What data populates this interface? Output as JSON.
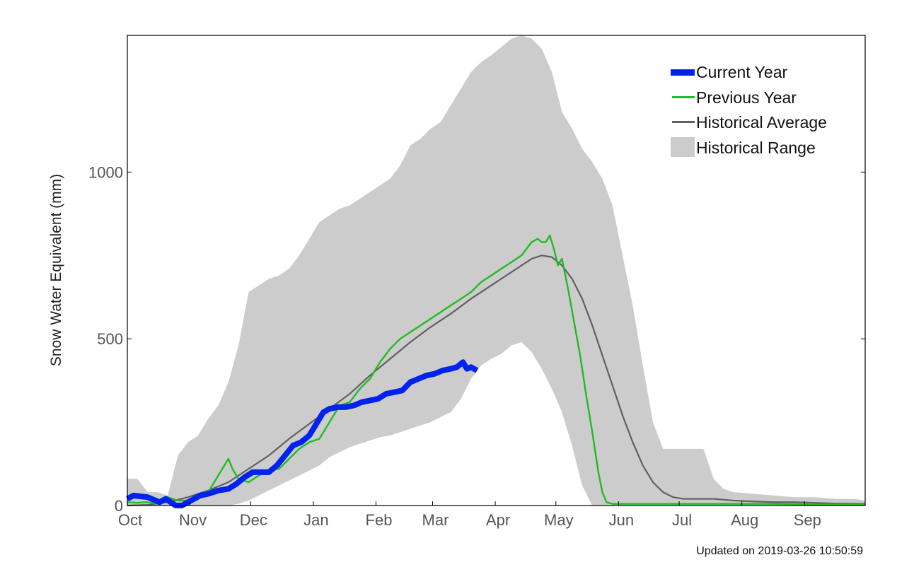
{
  "footer": {
    "updated_label": "Updated on  2019-03-26 10:50:59"
  },
  "chart_data": {
    "type": "line",
    "title": "",
    "xlabel": "",
    "ylabel": "Snow Water Equivalent (mm)",
    "xlim": [
      0,
      365
    ],
    "ylim": [
      0,
      1410
    ],
    "yticks": [
      0,
      500,
      1000
    ],
    "xticks": [
      {
        "day": 0,
        "label": "Oct"
      },
      {
        "day": 31,
        "label": "Nov"
      },
      {
        "day": 61,
        "label": "Dec"
      },
      {
        "day": 92,
        "label": "Jan"
      },
      {
        "day": 123,
        "label": "Feb"
      },
      {
        "day": 151,
        "label": "Mar"
      },
      {
        "day": 182,
        "label": "Apr"
      },
      {
        "day": 212,
        "label": "May"
      },
      {
        "day": 243,
        "label": "Jun"
      },
      {
        "day": 273,
        "label": "Jul"
      },
      {
        "day": 304,
        "label": "Aug"
      },
      {
        "day": 335,
        "label": "Sep"
      }
    ],
    "grid": false,
    "legend_position": "top-right",
    "colors": {
      "current_year": "#0022ee",
      "previous_year": "#22bb22",
      "historical_average": "#606060",
      "historical_range": "#cccccc"
    },
    "series": [
      {
        "name": "Current Year",
        "x": [
          0,
          3,
          10,
          16,
          19,
          22,
          24,
          27,
          30,
          33,
          36,
          40,
          45,
          50,
          54,
          58,
          62,
          66,
          70,
          74,
          78,
          82,
          86,
          90,
          94,
          97,
          100,
          104,
          108,
          112,
          116,
          120,
          124,
          128,
          132,
          136,
          140,
          144,
          148,
          152,
          156,
          160,
          163,
          166,
          168,
          170,
          173
        ],
        "y": [
          20,
          30,
          25,
          10,
          20,
          8,
          0,
          0,
          10,
          20,
          30,
          35,
          45,
          50,
          65,
          85,
          100,
          100,
          100,
          120,
          150,
          180,
          190,
          210,
          250,
          280,
          290,
          295,
          295,
          300,
          310,
          315,
          320,
          335,
          340,
          345,
          370,
          380,
          390,
          395,
          405,
          410,
          415,
          430,
          410,
          415,
          405
        ]
      },
      {
        "name": "Previous Year",
        "x": [
          0,
          5,
          10,
          15,
          20,
          25,
          30,
          35,
          40,
          45,
          48,
          50,
          52,
          55,
          60,
          65,
          70,
          75,
          80,
          85,
          90,
          95,
          100,
          105,
          110,
          115,
          120,
          125,
          130,
          135,
          140,
          145,
          150,
          155,
          160,
          165,
          170,
          175,
          180,
          185,
          190,
          195,
          200,
          203,
          205,
          207,
          209,
          211,
          213,
          215,
          218,
          221,
          224,
          227,
          230,
          233,
          235,
          237,
          240,
          250,
          265,
          280,
          300,
          320,
          340,
          365
        ],
        "y": [
          10,
          8,
          10,
          5,
          25,
          15,
          15,
          25,
          40,
          90,
          120,
          140,
          110,
          80,
          70,
          90,
          105,
          110,
          140,
          170,
          190,
          200,
          250,
          300,
          310,
          350,
          380,
          430,
          470,
          500,
          520,
          540,
          560,
          580,
          600,
          620,
          640,
          670,
          690,
          710,
          730,
          750,
          790,
          800,
          790,
          790,
          810,
          770,
          720,
          740,
          650,
          550,
          450,
          330,
          220,
          100,
          40,
          10,
          5,
          5,
          5,
          5,
          5,
          5,
          3,
          3
        ]
      },
      {
        "name": "Historical Average",
        "x": [
          0,
          10,
          20,
          30,
          40,
          50,
          60,
          70,
          80,
          90,
          100,
          110,
          120,
          130,
          140,
          150,
          160,
          170,
          180,
          190,
          195,
          200,
          205,
          210,
          215,
          220,
          225,
          230,
          235,
          240,
          245,
          250,
          255,
          260,
          265,
          270,
          275,
          280,
          290,
          300,
          310,
          320,
          330,
          340,
          350,
          365
        ],
        "y": [
          0,
          2,
          10,
          25,
          45,
          70,
          110,
          150,
          200,
          245,
          290,
          335,
          390,
          440,
          490,
          535,
          575,
          620,
          660,
          700,
          720,
          740,
          750,
          745,
          720,
          680,
          620,
          540,
          450,
          360,
          270,
          190,
          120,
          70,
          40,
          25,
          20,
          20,
          20,
          15,
          12,
          10,
          10,
          8,
          6,
          5
        ]
      },
      {
        "name": "Historical Range",
        "x": [
          0,
          5,
          10,
          15,
          20,
          25,
          30,
          35,
          40,
          45,
          50,
          55,
          60,
          65,
          70,
          75,
          80,
          85,
          90,
          95,
          100,
          105,
          110,
          115,
          120,
          125,
          130,
          135,
          140,
          145,
          150,
          155,
          160,
          165,
          170,
          175,
          180,
          185,
          190,
          195,
          200,
          205,
          210,
          215,
          220,
          225,
          230,
          235,
          240,
          245,
          250,
          255,
          260,
          265,
          270,
          275,
          280,
          285,
          290,
          295,
          300,
          310,
          320,
          330,
          340,
          350,
          360,
          365
        ],
        "y_low": [
          0,
          0,
          0,
          0,
          0,
          0,
          0,
          0,
          0,
          0,
          0,
          5,
          15,
          30,
          45,
          60,
          75,
          90,
          105,
          120,
          145,
          160,
          175,
          185,
          195,
          205,
          210,
          220,
          230,
          240,
          250,
          265,
          280,
          320,
          380,
          420,
          440,
          455,
          480,
          490,
          460,
          410,
          350,
          280,
          180,
          60,
          0,
          0,
          0,
          0,
          0,
          0,
          0,
          0,
          0,
          0,
          0,
          0,
          0,
          0,
          0,
          0,
          0,
          0,
          0,
          0,
          0,
          0
        ],
        "y_high": [
          80,
          80,
          40,
          40,
          30,
          150,
          190,
          210,
          260,
          300,
          370,
          480,
          640,
          660,
          680,
          690,
          710,
          750,
          800,
          850,
          870,
          890,
          900,
          920,
          940,
          960,
          980,
          1020,
          1080,
          1100,
          1130,
          1150,
          1200,
          1250,
          1300,
          1330,
          1350,
          1375,
          1400,
          1410,
          1400,
          1370,
          1300,
          1180,
          1130,
          1070,
          1030,
          980,
          900,
          750,
          600,
          420,
          250,
          170,
          170,
          170,
          170,
          170,
          80,
          50,
          40,
          35,
          30,
          25,
          25,
          20,
          20,
          15
        ]
      }
    ]
  }
}
